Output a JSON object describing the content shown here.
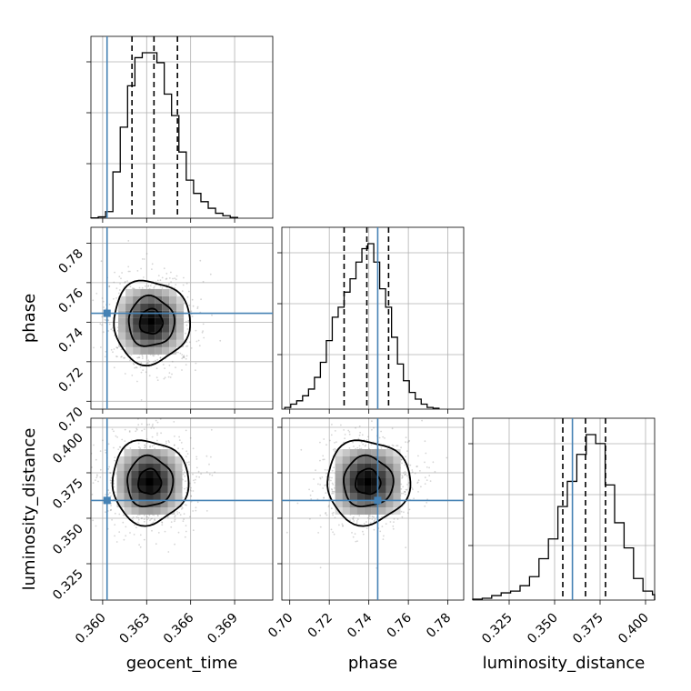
{
  "chart_data": {
    "type": "corner",
    "parameters": [
      "geocent_time",
      "phase",
      "luminosity_distance"
    ],
    "axis_labels": {
      "geocent_time": "geocent_time",
      "phase": "phase",
      "luminosity_distance": "luminosity_distance"
    },
    "ranges": {
      "geocent_time": [
        0.3592,
        0.3716
      ],
      "phase": [
        0.696,
        0.788
      ],
      "luminosity_distance": [
        0.305,
        0.405
      ]
    },
    "ticks": {
      "geocent_time": {
        "values": [
          0.36,
          0.363,
          0.366,
          0.369
        ],
        "labels": [
          "0.360",
          "0.363",
          "0.366",
          "0.369"
        ]
      },
      "phase": {
        "values": [
          0.7,
          0.72,
          0.74,
          0.76,
          0.78
        ],
        "labels": [
          "0.70",
          "0.72",
          "0.74",
          "0.76",
          "0.78"
        ]
      },
      "luminosity_distance": {
        "values": [
          0.325,
          0.35,
          0.375,
          0.4
        ],
        "labels": [
          "0.325",
          "0.350",
          "0.375",
          "0.400"
        ]
      }
    },
    "truths": {
      "geocent_time": 0.3603,
      "phase": 0.7445,
      "luminosity_distance": 0.3598
    },
    "quantiles": {
      "geocent_time": [
        0.362,
        0.3635,
        0.3651
      ],
      "phase": [
        0.7275,
        0.739,
        0.75
      ],
      "luminosity_distance": [
        0.3545,
        0.367,
        0.378
      ]
    },
    "histograms": {
      "geocent_time": {
        "bin_edges": [
          0.3592,
          0.3597,
          0.3602,
          0.3607,
          0.3612,
          0.3617,
          0.3622,
          0.3627,
          0.3632,
          0.3637,
          0.3642,
          0.3647,
          0.3652,
          0.3657,
          0.3662,
          0.3667,
          0.3672,
          0.3677,
          0.3682,
          0.3687,
          0.3692
        ],
        "counts": [
          0.2,
          0.8,
          4,
          28,
          55,
          80,
          97,
          100,
          100,
          94,
          75,
          62,
          40,
          23,
          15,
          10,
          6,
          3,
          1.5,
          0.5
        ]
      },
      "phase": {
        "bin_edges": [
          0.6975,
          0.7005,
          0.7035,
          0.7065,
          0.7095,
          0.7125,
          0.7155,
          0.7185,
          0.7215,
          0.7245,
          0.7275,
          0.7305,
          0.7335,
          0.7365,
          0.7395,
          0.7425,
          0.7455,
          0.7485,
          0.7515,
          0.7545,
          0.7575,
          0.7605,
          0.7635,
          0.7665,
          0.7695,
          0.7725,
          0.7755
        ],
        "counts": [
          1,
          3,
          5,
          8,
          12,
          19,
          28,
          41,
          55,
          61,
          70,
          78,
          88,
          96,
          99,
          88,
          72,
          61,
          43,
          27,
          17,
          10,
          6,
          3,
          1,
          0.5
        ]
      },
      "luminosity_distance": {
        "bin_edges": [
          0.305,
          0.3102,
          0.3154,
          0.3206,
          0.3258,
          0.331,
          0.3362,
          0.3414,
          0.3466,
          0.3518,
          0.357,
          0.3622,
          0.3674,
          0.3726,
          0.3778,
          0.383,
          0.3882,
          0.3934,
          0.3986,
          0.4038,
          0.405
        ],
        "counts": [
          0.5,
          1,
          2.5,
          4,
          5,
          8,
          13,
          23,
          34,
          52,
          66,
          81,
          92,
          87,
          64,
          43,
          29,
          12,
          5,
          3
        ]
      }
    },
    "pairs": [
      {
        "x": "geocent_time",
        "y": "phase",
        "center": [
          0.3633,
          0.7402
        ],
        "sigma": [
          0.0013,
          0.0105
        ],
        "levels": [
          0.6,
          1.2,
          2.0
        ]
      },
      {
        "x": "geocent_time",
        "y": "luminosity_distance",
        "center": [
          0.3632,
          0.37
        ],
        "sigma": [
          0.0013,
          0.0115
        ],
        "levels": [
          0.6,
          1.2,
          2.0
        ]
      },
      {
        "x": "phase",
        "y": "luminosity_distance",
        "center": [
          0.7395,
          0.37
        ],
        "sigma": [
          0.0105,
          0.0115
        ],
        "levels": [
          0.6,
          1.2,
          2.0
        ]
      }
    ]
  }
}
